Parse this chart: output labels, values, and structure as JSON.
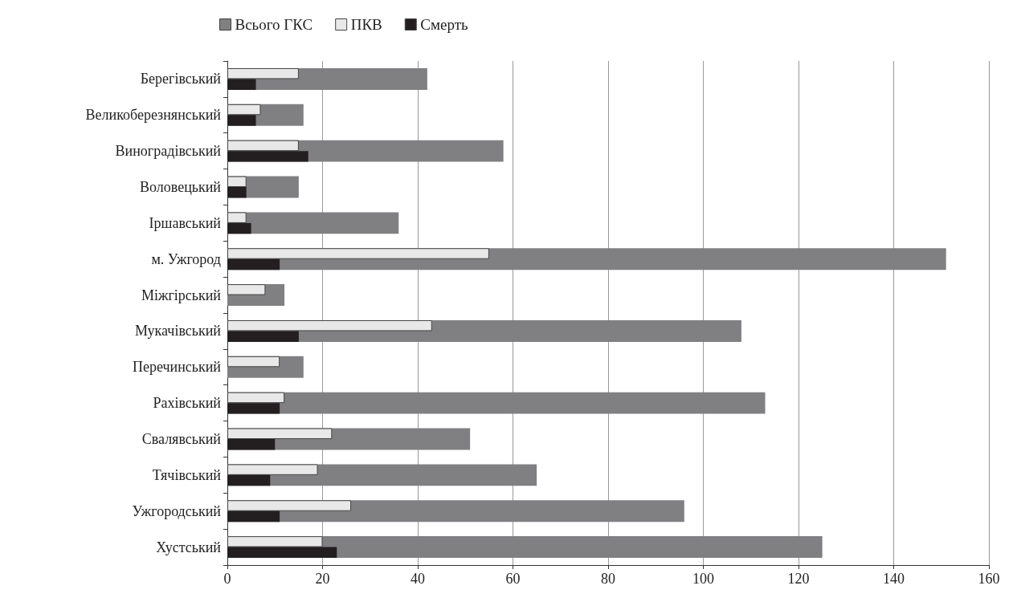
{
  "chart_data": {
    "type": "bar",
    "orientation": "horizontal",
    "categories": [
      "Берегівський",
      "Великоберезнянський",
      "Виноградівський",
      "Воловецький",
      "Іршавський",
      "м. Ужгород",
      "Міжгірський",
      "Мукачівський",
      "Перечинський",
      "Рахівський",
      "Свалявський",
      "Тячівський",
      "Ужгородський",
      "Хустський"
    ],
    "series": [
      {
        "name": "Всього ГКС",
        "color": "#808083",
        "values": [
          42,
          16,
          58,
          15,
          36,
          151,
          12,
          108,
          16,
          113,
          51,
          65,
          96,
          125
        ]
      },
      {
        "name": "ПКВ",
        "color": "#e8e8e8",
        "values": [
          15,
          7,
          15,
          4,
          4,
          55,
          8,
          43,
          11,
          12,
          22,
          19,
          26,
          20
        ]
      },
      {
        "name": "Смерть",
        "color": "#231f20",
        "values": [
          6,
          6,
          17,
          4,
          5,
          11,
          null,
          15,
          null,
          11,
          10,
          9,
          11,
          23
        ]
      }
    ],
    "xlim": [
      0,
      160
    ],
    "xticks": [
      0,
      20,
      40,
      60,
      80,
      100,
      120,
      140,
      160
    ],
    "grid": "x",
    "legend": "top"
  }
}
